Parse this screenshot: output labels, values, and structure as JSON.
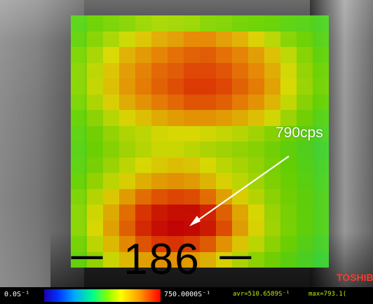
{
  "overlay": {
    "callout_label": "790cps",
    "big_number": "－ 186 －",
    "brand": "TOSHIB"
  },
  "status_bar": {
    "min_label": "0.0S⁻¹",
    "max_label": "750.0000S⁻¹",
    "avr_label": "avr=510.6589S⁻¹",
    "max_reading": "max=793.1("
  },
  "heatmap": {
    "rows": 16,
    "cols": 16,
    "grid": [
      [
        0.42,
        0.46,
        0.48,
        0.5,
        0.53,
        0.55,
        0.54,
        0.53,
        0.5,
        0.49,
        0.47,
        0.46,
        0.45,
        0.43,
        0.42,
        0.4
      ],
      [
        0.44,
        0.5,
        0.55,
        0.6,
        0.66,
        0.71,
        0.74,
        0.78,
        0.78,
        0.74,
        0.7,
        0.64,
        0.57,
        0.5,
        0.46,
        0.42
      ],
      [
        0.48,
        0.55,
        0.62,
        0.7,
        0.75,
        0.79,
        0.82,
        0.84,
        0.85,
        0.82,
        0.79,
        0.74,
        0.67,
        0.58,
        0.5,
        0.44
      ],
      [
        0.5,
        0.58,
        0.66,
        0.74,
        0.79,
        0.83,
        0.85,
        0.88,
        0.88,
        0.86,
        0.82,
        0.78,
        0.71,
        0.61,
        0.52,
        0.46
      ],
      [
        0.5,
        0.59,
        0.67,
        0.75,
        0.8,
        0.84,
        0.87,
        0.9,
        0.9,
        0.88,
        0.84,
        0.8,
        0.73,
        0.62,
        0.53,
        0.47
      ],
      [
        0.48,
        0.56,
        0.64,
        0.71,
        0.76,
        0.8,
        0.83,
        0.86,
        0.86,
        0.84,
        0.8,
        0.76,
        0.69,
        0.59,
        0.5,
        0.45
      ],
      [
        0.45,
        0.51,
        0.57,
        0.63,
        0.67,
        0.71,
        0.74,
        0.76,
        0.76,
        0.74,
        0.71,
        0.67,
        0.61,
        0.53,
        0.47,
        0.42
      ],
      [
        0.43,
        0.47,
        0.52,
        0.56,
        0.58,
        0.61,
        0.62,
        0.62,
        0.61,
        0.59,
        0.57,
        0.54,
        0.5,
        0.46,
        0.43,
        0.4
      ],
      [
        0.42,
        0.46,
        0.5,
        0.54,
        0.57,
        0.6,
        0.6,
        0.58,
        0.56,
        0.54,
        0.52,
        0.5,
        0.47,
        0.44,
        0.41,
        0.38
      ],
      [
        0.43,
        0.48,
        0.53,
        0.58,
        0.62,
        0.65,
        0.67,
        0.66,
        0.62,
        0.58,
        0.55,
        0.52,
        0.48,
        0.45,
        0.42,
        0.39
      ],
      [
        0.45,
        0.52,
        0.58,
        0.64,
        0.7,
        0.74,
        0.76,
        0.74,
        0.69,
        0.63,
        0.58,
        0.54,
        0.49,
        0.46,
        0.43,
        0.4
      ],
      [
        0.48,
        0.57,
        0.65,
        0.74,
        0.82,
        0.86,
        0.88,
        0.87,
        0.82,
        0.73,
        0.64,
        0.57,
        0.51,
        0.47,
        0.44,
        0.41
      ],
      [
        0.5,
        0.61,
        0.71,
        0.82,
        0.91,
        0.96,
        0.98,
        0.98,
        0.94,
        0.84,
        0.72,
        0.62,
        0.53,
        0.48,
        0.44,
        0.41
      ],
      [
        0.5,
        0.62,
        0.73,
        0.84,
        0.93,
        0.98,
        1.0,
        0.99,
        0.96,
        0.87,
        0.74,
        0.63,
        0.54,
        0.48,
        0.44,
        0.41
      ],
      [
        0.47,
        0.58,
        0.68,
        0.78,
        0.86,
        0.9,
        0.91,
        0.89,
        0.85,
        0.76,
        0.66,
        0.58,
        0.51,
        0.46,
        0.42,
        0.39
      ],
      [
        0.44,
        0.52,
        0.6,
        0.68,
        0.73,
        0.76,
        0.76,
        0.74,
        0.7,
        0.63,
        0.56,
        0.51,
        0.47,
        0.43,
        0.4,
        0.37
      ]
    ]
  }
}
